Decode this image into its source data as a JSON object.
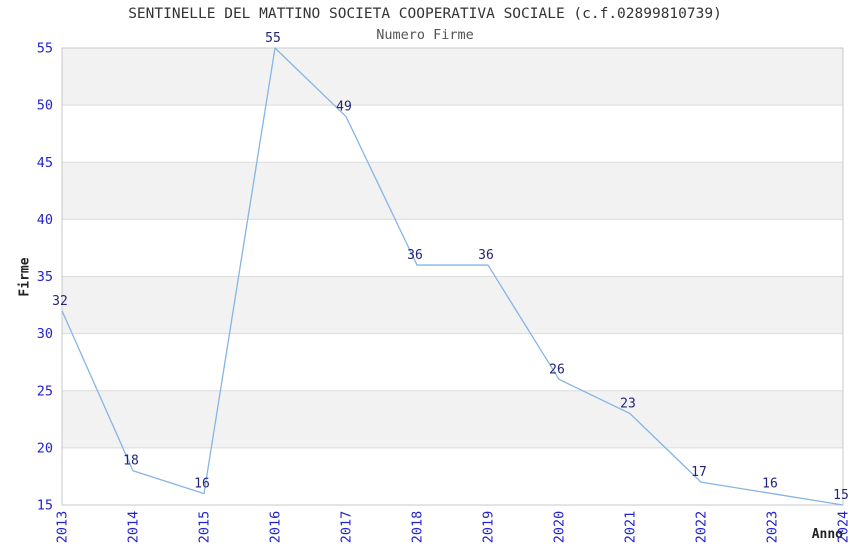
{
  "chart_data": {
    "type": "line",
    "title": "SENTINELLE DEL MATTINO SOCIETA COOPERATIVA SOCIALE (c.f.02899810739)",
    "subtitle": "Numero Firme",
    "xlabel": "Anno",
    "ylabel": "Firme",
    "categories": [
      "2013",
      "2014",
      "2015",
      "2016",
      "2017",
      "2018",
      "2019",
      "2020",
      "2021",
      "2022",
      "2023",
      "2024"
    ],
    "values": [
      32,
      18,
      16,
      55,
      49,
      36,
      36,
      26,
      23,
      17,
      16,
      15
    ],
    "ylim": [
      15,
      55
    ],
    "ytick_step": 5,
    "grid": true,
    "legend": "none",
    "band_stripes": "alternating horizontal gray bands of 5 units (20-25, 30-35, 40-45, 50-55)",
    "colors": {
      "line": "#85b5e6",
      "tick_label": "#2323cc",
      "data_label": "#232378",
      "band": "#f2f2f2",
      "gridline": "#dcdcdc",
      "border": "#c9c9c9",
      "title": "#333333",
      "subtitle": "#555555",
      "axis_label": "#222222",
      "background": "#ffffff"
    }
  }
}
